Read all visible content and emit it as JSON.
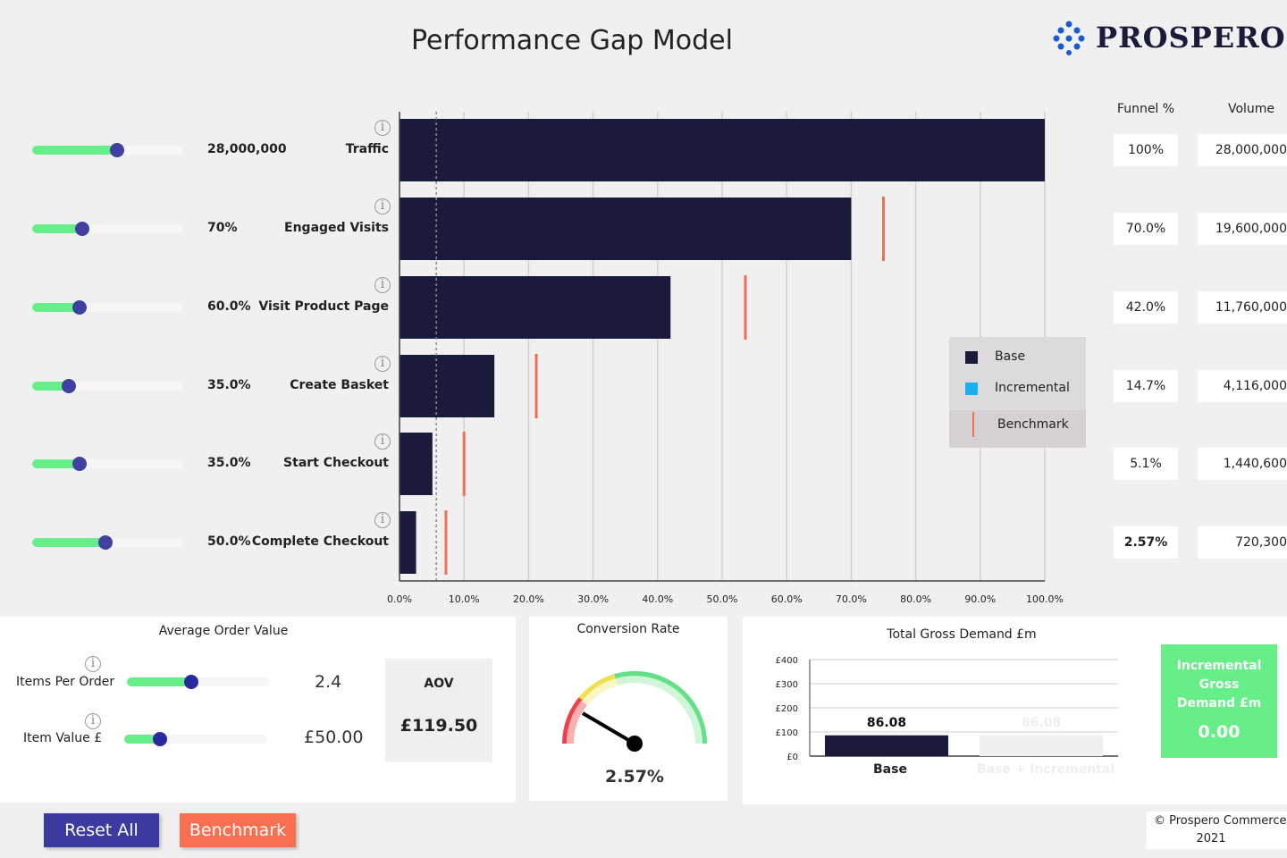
{
  "header": {
    "title": "Performance Gap Model",
    "logo": "PROSPERO"
  },
  "funnel": {
    "steps": [
      {
        "label": "Traffic",
        "input": "28,000,000",
        "slider": 0.56,
        "funnel_pct": "100%",
        "volume": "28,000,000"
      },
      {
        "label": "Engaged Visits",
        "input": "70%",
        "slider": 0.33,
        "funnel_pct": "70.0%",
        "volume": "19,600,000"
      },
      {
        "label": "Visit Product Page",
        "input": "60.0%",
        "slider": 0.31,
        "funnel_pct": "42.0%",
        "volume": "11,760,000"
      },
      {
        "label": "Create Basket",
        "input": "35.0%",
        "slider": 0.24,
        "funnel_pct": "14.7%",
        "volume": "4,116,000"
      },
      {
        "label": "Start Checkout",
        "input": "35.0%",
        "slider": 0.31,
        "funnel_pct": "5.1%",
        "volume": "1,440,600"
      },
      {
        "label": "Complete Checkout",
        "input": "50.0%",
        "slider": 0.48,
        "funnel_pct": "2.57%",
        "volume": "720,300"
      }
    ],
    "col_funnel": "Funnel %",
    "col_volume": "Volume"
  },
  "chart_data": [
    {
      "type": "bar",
      "orientation": "horizontal",
      "categories": [
        "Traffic",
        "Engaged Visits",
        "Visit Product Page",
        "Create Basket",
        "Start Checkout",
        "Complete Checkout"
      ],
      "series": [
        {
          "name": "Base",
          "values": [
            100,
            70,
            42,
            14.7,
            5.1,
            2.57
          ],
          "color": "#1a1a3a"
        },
        {
          "name": "Incremental",
          "values": [
            0,
            0,
            0,
            0,
            0,
            0
          ],
          "color": "#1ab0f0"
        },
        {
          "name": "Benchmark",
          "values": [
            null,
            75,
            53.6,
            21.2,
            10,
            7.2
          ],
          "color": "#f07050"
        }
      ],
      "reference_line": 5.7,
      "xlim": [
        0,
        100
      ],
      "xticks": [
        "0.0%",
        "10.0%",
        "20.0%",
        "30.0%",
        "40.0%",
        "50.0%",
        "60.0%",
        "70.0%",
        "80.0%",
        "90.0%",
        "100.0%"
      ],
      "grid": true,
      "legend": "right"
    },
    {
      "type": "bar",
      "title": "Total Gross Demand £m",
      "categories": [
        "Base",
        "Base + Incremental"
      ],
      "values": [
        86.08,
        86.08
      ],
      "data_labels": [
        "86.08",
        "86.08"
      ],
      "ylim": [
        0,
        400
      ],
      "yticks": [
        "£0",
        "£100",
        "£200",
        "£300",
        "£400"
      ],
      "colors": [
        "#1a1a3a",
        "#efefef"
      ]
    }
  ],
  "aov": {
    "title": "Average Order Value",
    "items_label": "Items Per Order",
    "items_value": "2.4",
    "items_slider": 0.45,
    "value_label": "Item Value £",
    "value_value": "£50.00",
    "value_slider": 0.25,
    "box_label": "AOV",
    "box_value": "£119.50"
  },
  "conversion": {
    "title": "Conversion Rate",
    "value": "2.57%",
    "gauge_level": 0.22
  },
  "incremental": {
    "label": "Incremental Gross Demand £m",
    "value": "0.00"
  },
  "buttons": {
    "reset": "Reset All",
    "benchmark": "Benchmark"
  },
  "footer": {
    "copyright": "© Prospero Commerce Ltd",
    "year": "2021"
  }
}
